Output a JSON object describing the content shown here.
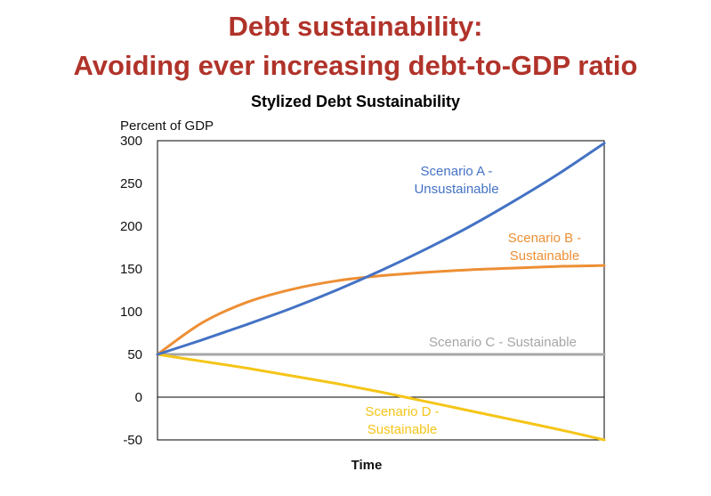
{
  "slide": {
    "title_line_1": "Debt sustainability:",
    "title_line_2": "Avoiding ever increasing debt-to-GDP ratio",
    "title_color": "#b0332a"
  },
  "chart_data": {
    "type": "line",
    "title": "Stylized Debt Sustainability",
    "ylabel": "Percent of GDP",
    "xlabel": "Time",
    "ylim": [
      -50,
      300
    ],
    "yticks": [
      -50,
      0,
      50,
      100,
      150,
      200,
      250,
      300
    ],
    "grid": false,
    "x": [
      0,
      1,
      2,
      3,
      4,
      5,
      6,
      7,
      8,
      9,
      10
    ],
    "series": [
      {
        "name": "Scenario A - Unsustainable",
        "label_lines": [
          "Scenario A -",
          "Unsustainable"
        ],
        "color": "#4472c4",
        "values": [
          50,
          67,
          85,
          104,
          125,
          148,
          173,
          200,
          230,
          262,
          297
        ]
      },
      {
        "name": "Scenario B - Sustainable",
        "label_lines": [
          "Scenario B -",
          "Sustainable"
        ],
        "color": "#ed8f35",
        "values": [
          50,
          87,
          111,
          126,
          136,
          142,
          146,
          149,
          151,
          153,
          154
        ]
      },
      {
        "name": "Scenario C - Sustainable",
        "label_lines": [
          "Scenario C - Sustainable"
        ],
        "color": "#a6a6a6",
        "values": [
          50,
          50,
          50,
          50,
          50,
          50,
          50,
          50,
          50,
          50,
          50
        ]
      },
      {
        "name": "Scenario D - Sustainable",
        "label_lines": [
          "Scenario D -",
          "Sustainable"
        ],
        "color": "#f5c518",
        "values": [
          50,
          42,
          34,
          25,
          16,
          6,
          -5,
          -16,
          -27,
          -38,
          -50
        ]
      }
    ]
  }
}
